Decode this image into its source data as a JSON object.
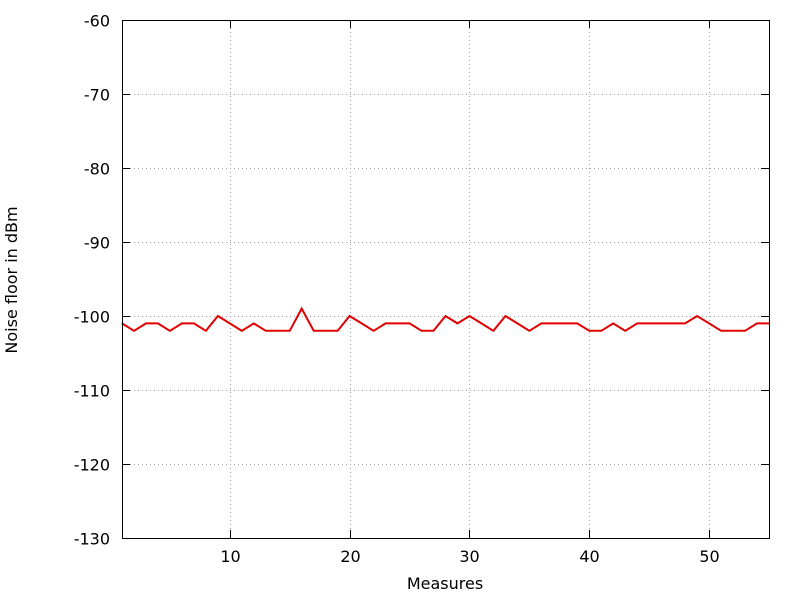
{
  "chart_data": {
    "type": "line",
    "title": "",
    "xlabel": "Measures",
    "ylabel": "Noise floor in dBm",
    "xlim": [
      1,
      55
    ],
    "ylim": [
      -130,
      -60
    ],
    "xticks": [
      10,
      20,
      30,
      40,
      50
    ],
    "yticks": [
      -60,
      -70,
      -80,
      -90,
      -100,
      -110,
      -120,
      -130
    ],
    "grid": true,
    "legend": "none",
    "series": [
      {
        "color": "#e00000",
        "x": [
          1,
          2,
          3,
          4,
          5,
          6,
          7,
          8,
          9,
          10,
          11,
          12,
          13,
          14,
          15,
          16,
          17,
          18,
          19,
          20,
          21,
          22,
          23,
          24,
          25,
          26,
          27,
          28,
          29,
          30,
          31,
          32,
          33,
          34,
          35,
          36,
          37,
          38,
          39,
          40,
          41,
          42,
          43,
          44,
          45,
          46,
          47,
          48,
          49,
          50,
          51,
          52,
          53,
          54,
          55
        ],
        "y": [
          -101,
          -102,
          -101,
          -101,
          -102,
          -101,
          -101,
          -102,
          -100,
          -101,
          -102,
          -101,
          -102,
          -102,
          -102,
          -99,
          -102,
          -102,
          -102,
          -100,
          -101,
          -102,
          -101,
          -101,
          -101,
          -102,
          -102,
          -100,
          -101,
          -100,
          -101,
          -102,
          -100,
          -101,
          -102,
          -101,
          -101,
          -101,
          -101,
          -102,
          -102,
          -101,
          -102,
          -101,
          -101,
          -101,
          -101,
          -101,
          -100,
          -101,
          -102,
          -102,
          -102,
          -101,
          -101
        ]
      }
    ]
  }
}
